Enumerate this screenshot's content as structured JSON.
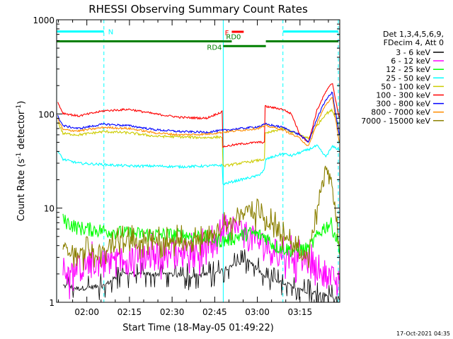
{
  "chart_data": {
    "type": "line",
    "title": "RHESSI Observing Summary Count Rates",
    "xlabel": "Start Time (18-May-05 01:49:22)",
    "ylabel_main": "Count Rate (s",
    "ylabel_sup1": "-1",
    "ylabel_mid": " detector",
    "ylabel_sup2": "-1",
    "ylabel_end": ")",
    "yscale": "log",
    "ylim": [
      1,
      1000
    ],
    "xlim": [
      1.8228,
      3.4833
    ],
    "x_ticks": [
      {
        "value": 2.0,
        "label": "02:00"
      },
      {
        "value": 2.25,
        "label": "02:15"
      },
      {
        "value": 2.5,
        "label": "02:30"
      },
      {
        "value": 2.75,
        "label": "02:45"
      },
      {
        "value": 3.0,
        "label": "03:00"
      },
      {
        "value": 3.25,
        "label": "03:15"
      }
    ],
    "y_ticks": [
      {
        "value": 1,
        "label": "1"
      },
      {
        "value": 10,
        "label": "10"
      },
      {
        "value": 100,
        "label": "100"
      },
      {
        "value": 1000,
        "label": "1000"
      }
    ],
    "legend_header": [
      "Det 1,3,4,5,6,9,",
      "FDecim 4, Att 0"
    ],
    "legend_position": "right",
    "series": [
      {
        "name": "3 - 6 keV",
        "color": "#000000",
        "x": [
          1.86,
          1.95,
          2.1,
          2.2,
          2.3,
          2.45,
          2.6,
          2.75,
          2.85,
          2.95,
          3.05,
          3.2,
          3.3,
          3.4,
          3.48
        ],
        "values": [
          1.5,
          1.4,
          1.5,
          2.0,
          2.0,
          2.0,
          1.9,
          2.0,
          2.5,
          2.8,
          1.8,
          1.5,
          1.3,
          1.2,
          1.1
        ]
      },
      {
        "name": "6 - 12 keV",
        "color": "#ff00ff",
        "x": [
          1.86,
          1.95,
          2.1,
          2.25,
          2.4,
          2.55,
          2.7,
          2.75,
          2.8,
          2.9,
          3.0,
          3.05,
          3.15,
          3.25,
          3.35,
          3.42,
          3.48
        ],
        "values": [
          2.0,
          2.4,
          2.8,
          3.0,
          3.3,
          3.5,
          3.5,
          4.0,
          7.0,
          6.0,
          4.5,
          4.0,
          3.2,
          3.0,
          2.5,
          2.0,
          1.5
        ]
      },
      {
        "name": "12 - 25 keV",
        "color": "#00ff00",
        "x": [
          1.86,
          1.95,
          2.1,
          2.25,
          2.4,
          2.55,
          2.7,
          2.8,
          2.85,
          2.95,
          3.05,
          3.1,
          3.2,
          3.3,
          3.38,
          3.43,
          3.48
        ],
        "values": [
          7.5,
          6.2,
          5.8,
          5.4,
          5.3,
          5.2,
          5.0,
          4.5,
          4.8,
          5.5,
          5.0,
          4.0,
          3.6,
          3.7,
          6.0,
          7.0,
          4.0
        ]
      },
      {
        "name": "25 - 50 keV",
        "color": "#00ffff",
        "x": [
          1.83,
          1.86,
          1.95,
          2.1,
          2.25,
          2.4,
          2.55,
          2.7,
          2.79,
          2.8,
          2.9,
          3.0,
          3.04,
          3.05,
          3.15,
          3.2,
          3.3,
          3.35,
          3.4,
          3.44,
          3.48
        ],
        "values": [
          40,
          33,
          30,
          29,
          28,
          28,
          27.5,
          28,
          28.5,
          18,
          20,
          22,
          25,
          33,
          38,
          36,
          42,
          46,
          35,
          45,
          42
        ]
      },
      {
        "name": "50 - 100 keV",
        "color": "#cccc00",
        "x": [
          1.83,
          1.86,
          1.95,
          2.1,
          2.25,
          2.4,
          2.55,
          2.7,
          2.79,
          2.8,
          2.9,
          3.0,
          3.04,
          3.05,
          3.15,
          3.25,
          3.3,
          3.35,
          3.4,
          3.44,
          3.48
        ],
        "values": [
          82,
          62,
          60,
          65,
          63,
          58,
          57,
          56,
          57,
          28,
          30,
          32,
          33,
          62,
          70,
          60,
          55,
          75,
          100,
          110,
          70
        ]
      },
      {
        "name": "100 - 300 keV",
        "color": "#ff0000",
        "x": [
          1.83,
          1.86,
          1.95,
          2.1,
          2.25,
          2.4,
          2.55,
          2.7,
          2.79,
          2.8,
          2.9,
          3.0,
          3.04,
          3.05,
          3.15,
          3.2,
          3.25,
          3.3,
          3.35,
          3.4,
          3.44,
          3.48
        ],
        "values": [
          132,
          102,
          95,
          108,
          112,
          100,
          92,
          90,
          105,
          45,
          48,
          50,
          50,
          120,
          112,
          100,
          60,
          50,
          110,
          170,
          215,
          90
        ]
      },
      {
        "name": "300 - 800 keV",
        "color": "#0000ff",
        "x": [
          1.83,
          1.86,
          1.95,
          2.1,
          2.25,
          2.4,
          2.55,
          2.7,
          2.8,
          2.9,
          3.0,
          3.05,
          3.15,
          3.25,
          3.3,
          3.35,
          3.4,
          3.44,
          3.48
        ],
        "values": [
          95,
          75,
          70,
          78,
          75,
          68,
          65,
          64,
          67,
          70,
          73,
          78,
          72,
          60,
          50,
          90,
          140,
          170,
          60
        ]
      },
      {
        "name": "800 - 7000 keV",
        "color": "#ff8c00",
        "x": [
          1.83,
          1.86,
          1.95,
          2.1,
          2.25,
          2.4,
          2.55,
          2.7,
          2.8,
          2.9,
          3.0,
          3.05,
          3.15,
          3.25,
          3.3,
          3.35,
          3.4,
          3.44,
          3.48
        ],
        "values": [
          88,
          68,
          66,
          72,
          70,
          63,
          60,
          61,
          64,
          67,
          70,
          75,
          68,
          55,
          45,
          80,
          125,
          150,
          50
        ]
      },
      {
        "name": "7000 - 15000 keV",
        "color": "#8b8000",
        "x": [
          1.86,
          1.95,
          2.05,
          2.1,
          2.2,
          2.3,
          2.45,
          2.6,
          2.7,
          2.8,
          2.9,
          2.95,
          3.05,
          3.1,
          3.2,
          3.25,
          3.3,
          3.35,
          3.4,
          3.44,
          3.48
        ],
        "values": [
          3.8,
          3.4,
          3.4,
          3.8,
          4.6,
          4.4,
          4.4,
          4.6,
          5.0,
          6.0,
          8.5,
          9.5,
          7.5,
          6.5,
          4.0,
          3.3,
          3.2,
          10.0,
          30.0,
          18.0,
          3.5
        ]
      }
    ],
    "bars": [
      {
        "label": "N",
        "color": "#00ffff",
        "value": 750,
        "segments": [
          [
            1.825,
            2.1
          ],
          [
            3.15,
            3.475
          ]
        ]
      },
      {
        "label": "",
        "color": "#008000",
        "value": 590,
        "segments": [
          [
            1.825,
            2.8
          ],
          [
            3.05,
            3.475
          ]
        ]
      },
      {
        "label": "F",
        "color": "#ff0000",
        "value": 745,
        "segments": [
          [
            2.85,
            2.92
          ]
        ]
      },
      {
        "label": "RD0",
        "color": "#008000",
        "value": 590,
        "segments": [
          [
            2.8,
            2.85
          ]
        ]
      },
      {
        "label": "RD4",
        "color": "#008000",
        "value": 525,
        "segments": [
          [
            2.8,
            3.05
          ]
        ]
      }
    ],
    "vlines": [
      {
        "x": 1.823,
        "style": "solid",
        "color": "#00ffff"
      },
      {
        "x": 2.1,
        "style": "dashed",
        "color": "#00ffff"
      },
      {
        "x": 2.8,
        "style": "solid",
        "color": "#00ffff"
      },
      {
        "x": 3.15,
        "style": "dashed",
        "color": "#00ffff"
      },
      {
        "x": 3.475,
        "style": "dashed",
        "color": "#00ffff"
      }
    ],
    "footer": "17-Oct-2021 04:35",
    "grid": false
  }
}
